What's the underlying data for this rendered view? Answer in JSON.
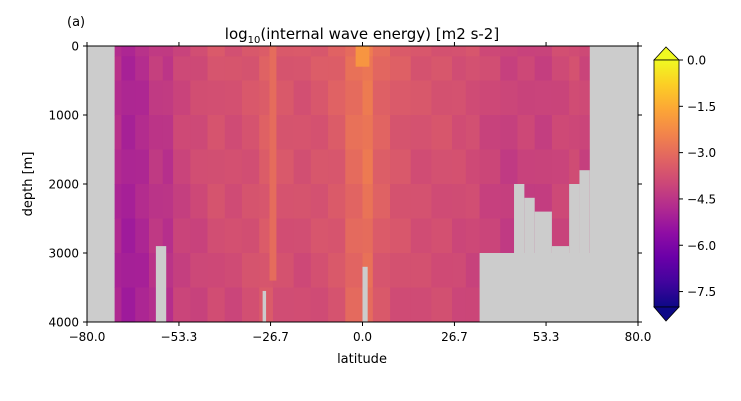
{
  "panel_label": "(a)",
  "colors": {
    "land": "#cccccc",
    "axis": "#000000"
  },
  "chart_data": {
    "type": "heatmap",
    "title_main": "log",
    "title_sub": "10",
    "title_rest": "(internal wave energy) [m2 s-2]",
    "xlabel": "latitude",
    "ylabel": "depth [m]",
    "xlim": [
      -80.0,
      80.0
    ],
    "ylim": [
      4000,
      0
    ],
    "x_ticks": [
      "−80.0",
      "−53.3",
      "−26.7",
      "0.0",
      "26.7",
      "53.3",
      "80.0"
    ],
    "x_tick_values": [
      -80.0,
      -53.3,
      -26.7,
      0.0,
      26.7,
      53.3,
      80.0
    ],
    "y_ticks": [
      "0",
      "1000",
      "2000",
      "3000",
      "4000"
    ],
    "y_tick_values": [
      0,
      1000,
      2000,
      3000,
      4000
    ],
    "colorbar": {
      "colormap": "plasma",
      "range": [
        -8.0,
        0.0
      ],
      "extend": "both",
      "ticks": [
        "0.0",
        "−1.5",
        "−3.0",
        "−4.5",
        "−6.0",
        "−7.5"
      ],
      "tick_values": [
        0.0,
        -1.5,
        -3.0,
        -4.5,
        -6.0,
        -7.5
      ]
    },
    "land_mask": {
      "note_units": "latitude and depth in data units",
      "south_edge_lat": -72,
      "north_edge_lat": 66,
      "north_shelf_depths": [
        [
          44,
          2000
        ],
        [
          47,
          2200
        ],
        [
          50,
          2400
        ],
        [
          55,
          2900
        ],
        [
          60,
          2000
        ],
        [
          63,
          1800
        ],
        [
          66,
          700
        ]
      ],
      "blocks": [
        {
          "lat0": -80,
          "lat1": -72,
          "d0": 0,
          "d1": 4000
        },
        {
          "lat0": -60,
          "lat1": -57,
          "d0": 2900,
          "d1": 4000
        },
        {
          "lat0": -29,
          "lat1": -28,
          "d0": 3550,
          "d1": 4000
        },
        {
          "lat0": 0,
          "lat1": 1.5,
          "d0": 3200,
          "d1": 4000
        },
        {
          "lat0": 34,
          "lat1": 80,
          "d0": 3000,
          "d1": 4000
        },
        {
          "lat0": 66,
          "lat1": 80,
          "d0": 0,
          "d1": 4000
        }
      ]
    },
    "field_columns": [
      {
        "lat0": -72,
        "lat1": -70,
        "surface": -4.6,
        "deep": -5.0
      },
      {
        "lat0": -70,
        "lat1": -66,
        "surface": -4.9,
        "deep": -5.2
      },
      {
        "lat0": -66,
        "lat1": -62,
        "surface": -4.7,
        "deep": -5.0
      },
      {
        "lat0": -62,
        "lat1": -58,
        "surface": -4.3,
        "deep": -4.6
      },
      {
        "lat0": -58,
        "lat1": -55,
        "surface": -4.4,
        "deep": -4.7
      },
      {
        "lat0": -55,
        "lat1": -50,
        "surface": -4.0,
        "deep": -4.2
      },
      {
        "lat0": -50,
        "lat1": -45,
        "surface": -3.8,
        "deep": -4.1
      },
      {
        "lat0": -45,
        "lat1": -40,
        "surface": -3.6,
        "deep": -3.9
      },
      {
        "lat0": -40,
        "lat1": -35,
        "surface": -3.7,
        "deep": -3.95
      },
      {
        "lat0": -35,
        "lat1": -30,
        "surface": -3.6,
        "deep": -3.8
      },
      {
        "lat0": -30,
        "lat1": -26,
        "surface": -3.3,
        "deep": -3.6
      },
      {
        "lat0": -26,
        "lat1": -20,
        "surface": -3.5,
        "deep": -3.8
      },
      {
        "lat0": -20,
        "lat1": -15,
        "surface": -3.6,
        "deep": -3.9
      },
      {
        "lat0": -15,
        "lat1": -10,
        "surface": -3.5,
        "deep": -3.8
      },
      {
        "lat0": -10,
        "lat1": -5,
        "surface": -3.3,
        "deep": -3.7
      },
      {
        "lat0": -5,
        "lat1": 0,
        "surface": -2.9,
        "deep": -3.2
      },
      {
        "lat0": 0,
        "lat1": 3,
        "surface": -2.6,
        "deep": -3.0
      },
      {
        "lat0": 3,
        "lat1": 8,
        "surface": -3.1,
        "deep": -3.6
      },
      {
        "lat0": 8,
        "lat1": 14,
        "surface": -3.4,
        "deep": -3.8
      },
      {
        "lat0": 14,
        "lat1": 20,
        "surface": -3.6,
        "deep": -3.9
      },
      {
        "lat0": 20,
        "lat1": 26,
        "surface": -3.6,
        "deep": -3.9
      },
      {
        "lat0": 26,
        "lat1": 30,
        "surface": -3.7,
        "deep": -4.0
      },
      {
        "lat0": 30,
        "lat1": 34,
        "surface": -3.7,
        "deep": -4.1
      },
      {
        "lat0": 34,
        "lat1": 40,
        "surface": -3.9,
        "deep": -4.3
      },
      {
        "lat0": 40,
        "lat1": 45,
        "surface": -4.1,
        "deep": -4.4
      },
      {
        "lat0": 45,
        "lat1": 50,
        "surface": -4.0,
        "deep": -4.3
      },
      {
        "lat0": 50,
        "lat1": 55,
        "surface": -4.1,
        "deep": -4.4
      },
      {
        "lat0": 55,
        "lat1": 60,
        "surface": -3.9,
        "deep": -4.2
      },
      {
        "lat0": 60,
        "lat1": 63,
        "surface": -3.8,
        "deep": -4.1
      },
      {
        "lat0": 63,
        "lat1": 66,
        "surface": -4.0,
        "deep": -4.2
      }
    ],
    "highlights": [
      {
        "lat0": -75,
        "lat1": -72,
        "d0": 0,
        "d1": 800,
        "value": -2.2
      },
      {
        "lat0": -2,
        "lat1": 2,
        "d0": 0,
        "d1": 300,
        "value": -2.0
      },
      {
        "lat0": 78,
        "lat1": 80,
        "d0": 0,
        "d1": 120,
        "value": -2.0
      },
      {
        "lat0": -27,
        "lat1": -25,
        "d0": 0,
        "d1": 3400,
        "value": -3.0
      },
      {
        "lat0": 52,
        "lat1": 57,
        "d0": 3000,
        "d1": 3600,
        "value": -4.2
      }
    ]
  }
}
